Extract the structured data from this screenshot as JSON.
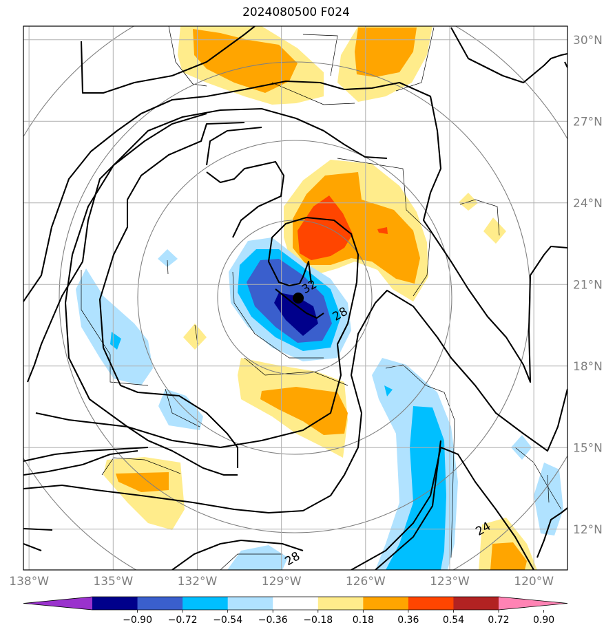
{
  "title": "2024080500 F024",
  "map": {
    "lon_range": [
      -138.2,
      -118.8
    ],
    "lat_range": [
      10.5,
      30.5
    ],
    "lat_ticks": [
      {
        "value": 30,
        "label": "30°N"
      },
      {
        "value": 27,
        "label": "27°N"
      },
      {
        "value": 24,
        "label": "24°N"
      },
      {
        "value": 21,
        "label": "21°N"
      },
      {
        "value": 18,
        "label": "18°N"
      },
      {
        "value": 15,
        "label": "15°N"
      },
      {
        "value": 12,
        "label": "12°N"
      }
    ],
    "lon_ticks": [
      {
        "value": -138,
        "label": "138°W"
      },
      {
        "value": -135,
        "label": "135°W"
      },
      {
        "value": -132,
        "label": "132°W"
      },
      {
        "value": -129,
        "label": "129°W"
      },
      {
        "value": -126,
        "label": "126°W"
      },
      {
        "value": -123,
        "label": "123°W"
      },
      {
        "value": -120,
        "label": "120°W"
      }
    ],
    "storm_center": {
      "lon": -128.4,
      "lat": 20.5
    },
    "contour_labels": [
      {
        "text": "32",
        "lon": -128.0,
        "lat": 20.9
      },
      {
        "text": "28",
        "lon": -126.9,
        "lat": 19.9
      },
      {
        "text": "28",
        "lon": -128.6,
        "lat": 10.9
      },
      {
        "text": "24",
        "lon": -121.8,
        "lat": 12.0
      }
    ]
  },
  "colorbar": {
    "colors": [
      "#9a32cd",
      "#00008b",
      "#3a5fcd",
      "#00bfff",
      "#b0e2ff",
      "#ffffff",
      "#ffec8b",
      "#ffa500",
      "#ff4500",
      "#b22222",
      "#ff83b4"
    ],
    "ticks": [
      "−0.90",
      "−0.72",
      "−0.54",
      "−0.36",
      "−0.18",
      "0.18",
      "0.36",
      "0.54",
      "0.72",
      "0.90"
    ]
  }
}
